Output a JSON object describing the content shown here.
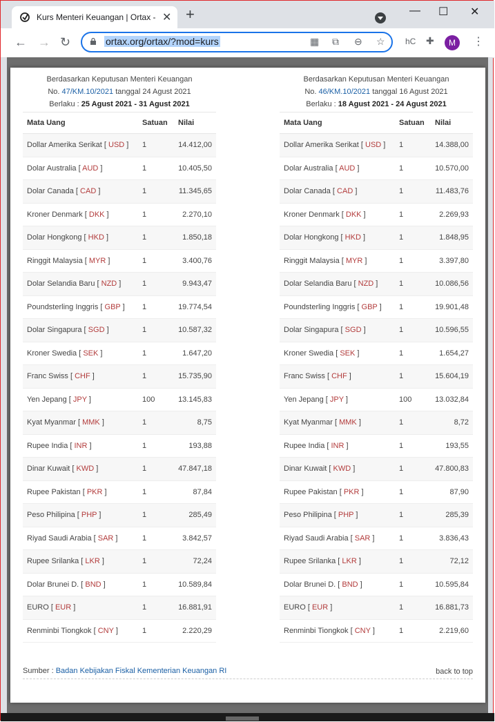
{
  "browser": {
    "tab_title": "Kurs Menteri Keuangan | Ortax - ",
    "tab_close": "✕",
    "new_tab": "+",
    "url": "ortax.org/ortax/?mod=kurs",
    "profile_letter": "M",
    "ext_hc": "hC",
    "win_min": "—",
    "win_max": "☐",
    "win_close": "✕"
  },
  "left": {
    "line1": "Berdasarkan Keputusan Menteri Keuangan",
    "line2_no": "No.",
    "line2_link": "47/KM.10/2021",
    "line2_date": "tanggal 24 Agust 2021",
    "line3_label": "Berlaku :",
    "line3_range": "25 Agust 2021 - 31 Agust 2021",
    "headers": {
      "currency": "Mata Uang",
      "unit": "Satuan",
      "value": "Nilai"
    },
    "rows": [
      {
        "name": "Dollar Amerika Serikat",
        "code": "USD",
        "unit": "1",
        "value": "14.412,00"
      },
      {
        "name": "Dolar Australia",
        "code": "AUD",
        "unit": "1",
        "value": "10.405,50"
      },
      {
        "name": "Dolar Canada",
        "code": "CAD",
        "unit": "1",
        "value": "11.345,65"
      },
      {
        "name": "Kroner Denmark",
        "code": "DKK",
        "unit": "1",
        "value": "2.270,10"
      },
      {
        "name": "Dolar Hongkong",
        "code": "HKD",
        "unit": "1",
        "value": "1.850,18"
      },
      {
        "name": "Ringgit Malaysia",
        "code": "MYR",
        "unit": "1",
        "value": "3.400,76"
      },
      {
        "name": "Dolar Selandia Baru",
        "code": "NZD",
        "unit": "1",
        "value": "9.943,47"
      },
      {
        "name": "Poundsterling Inggris",
        "code": "GBP",
        "unit": "1",
        "value": "19.774,54"
      },
      {
        "name": "Dolar Singapura",
        "code": "SGD",
        "unit": "1",
        "value": "10.587,32"
      },
      {
        "name": "Kroner Swedia",
        "code": "SEK",
        "unit": "1",
        "value": "1.647,20"
      },
      {
        "name": "Franc Swiss",
        "code": "CHF",
        "unit": "1",
        "value": "15.735,90"
      },
      {
        "name": "Yen Jepang",
        "code": "JPY",
        "unit": "100",
        "value": "13.145,83"
      },
      {
        "name": "Kyat Myanmar",
        "code": "MMK",
        "unit": "1",
        "value": "8,75"
      },
      {
        "name": "Rupee India",
        "code": "INR",
        "unit": "1",
        "value": "193,88"
      },
      {
        "name": "Dinar Kuwait",
        "code": "KWD",
        "unit": "1",
        "value": "47.847,18"
      },
      {
        "name": "Rupee Pakistan",
        "code": "PKR",
        "unit": "1",
        "value": "87,84"
      },
      {
        "name": "Peso Philipina",
        "code": "PHP",
        "unit": "1",
        "value": "285,49"
      },
      {
        "name": "Riyad Saudi Arabia",
        "code": "SAR",
        "unit": "1",
        "value": "3.842,57"
      },
      {
        "name": "Rupee Srilanka",
        "code": "LKR",
        "unit": "1",
        "value": "72,24"
      },
      {
        "name": "Dolar Brunei D.",
        "code": "BND",
        "unit": "1",
        "value": "10.589,84"
      },
      {
        "name": "EURO",
        "code": "EUR",
        "unit": "1",
        "value": "16.881,91"
      },
      {
        "name": "Renminbi Tiongkok",
        "code": "CNY",
        "unit": "1",
        "value": "2.220,29"
      }
    ]
  },
  "right": {
    "line1": "Berdasarkan Keputusan Menteri Keuangan",
    "line2_no": "No.",
    "line2_link": "46/KM.10/2021",
    "line2_date": "tanggal 16 Agust 2021",
    "line3_label": "Berlaku :",
    "line3_range": "18 Agust 2021 - 24 Agust 2021",
    "headers": {
      "currency": "Mata Uang",
      "unit": "Satuan",
      "value": "Nilai"
    },
    "rows": [
      {
        "name": "Dollar Amerika Serikat",
        "code": "USD",
        "unit": "1",
        "value": "14.388,00"
      },
      {
        "name": "Dolar Australia",
        "code": "AUD",
        "unit": "1",
        "value": "10.570,00"
      },
      {
        "name": "Dolar Canada",
        "code": "CAD",
        "unit": "1",
        "value": "11.483,76"
      },
      {
        "name": "Kroner Denmark",
        "code": "DKK",
        "unit": "1",
        "value": "2.269,93"
      },
      {
        "name": "Dolar Hongkong",
        "code": "HKD",
        "unit": "1",
        "value": "1.848,95"
      },
      {
        "name": "Ringgit Malaysia",
        "code": "MYR",
        "unit": "1",
        "value": "3.397,80"
      },
      {
        "name": "Dolar Selandia Baru",
        "code": "NZD",
        "unit": "1",
        "value": "10.086,56"
      },
      {
        "name": "Poundsterling Inggris",
        "code": "GBP",
        "unit": "1",
        "value": "19.901,48"
      },
      {
        "name": "Dolar Singapura",
        "code": "SGD",
        "unit": "1",
        "value": "10.596,55"
      },
      {
        "name": "Kroner Swedia",
        "code": "SEK",
        "unit": "1",
        "value": "1.654,27"
      },
      {
        "name": "Franc Swiss",
        "code": "CHF",
        "unit": "1",
        "value": "15.604,19"
      },
      {
        "name": "Yen Jepang",
        "code": "JPY",
        "unit": "100",
        "value": "13.032,84"
      },
      {
        "name": "Kyat Myanmar",
        "code": "MMK",
        "unit": "1",
        "value": "8,72"
      },
      {
        "name": "Rupee India",
        "code": "INR",
        "unit": "1",
        "value": "193,55"
      },
      {
        "name": "Dinar Kuwait",
        "code": "KWD",
        "unit": "1",
        "value": "47.800,83"
      },
      {
        "name": "Rupee Pakistan",
        "code": "PKR",
        "unit": "1",
        "value": "87,90"
      },
      {
        "name": "Peso Philipina",
        "code": "PHP",
        "unit": "1",
        "value": "285,39"
      },
      {
        "name": "Riyad Saudi Arabia",
        "code": "SAR",
        "unit": "1",
        "value": "3.836,43"
      },
      {
        "name": "Rupee Srilanka",
        "code": "LKR",
        "unit": "1",
        "value": "72,12"
      },
      {
        "name": "Dolar Brunei D.",
        "code": "BND",
        "unit": "1",
        "value": "10.595,84"
      },
      {
        "name": "EURO",
        "code": "EUR",
        "unit": "1",
        "value": "16.881,73"
      },
      {
        "name": "Renminbi Tiongkok",
        "code": "CNY",
        "unit": "1",
        "value": "2.219,60"
      }
    ]
  },
  "footer": {
    "source_label": "Sumber :",
    "source_link": "Badan Kebijakan Fiskal Kementerian Keuangan RI",
    "back_to_top": "back to top"
  },
  "icons": {
    "back": "←",
    "forward": "→",
    "reload": "↻",
    "qr": "▦",
    "translate": "⧉",
    "zoom": "⊖",
    "star": "☆",
    "puzzle": "✚",
    "menu": "⋮"
  }
}
